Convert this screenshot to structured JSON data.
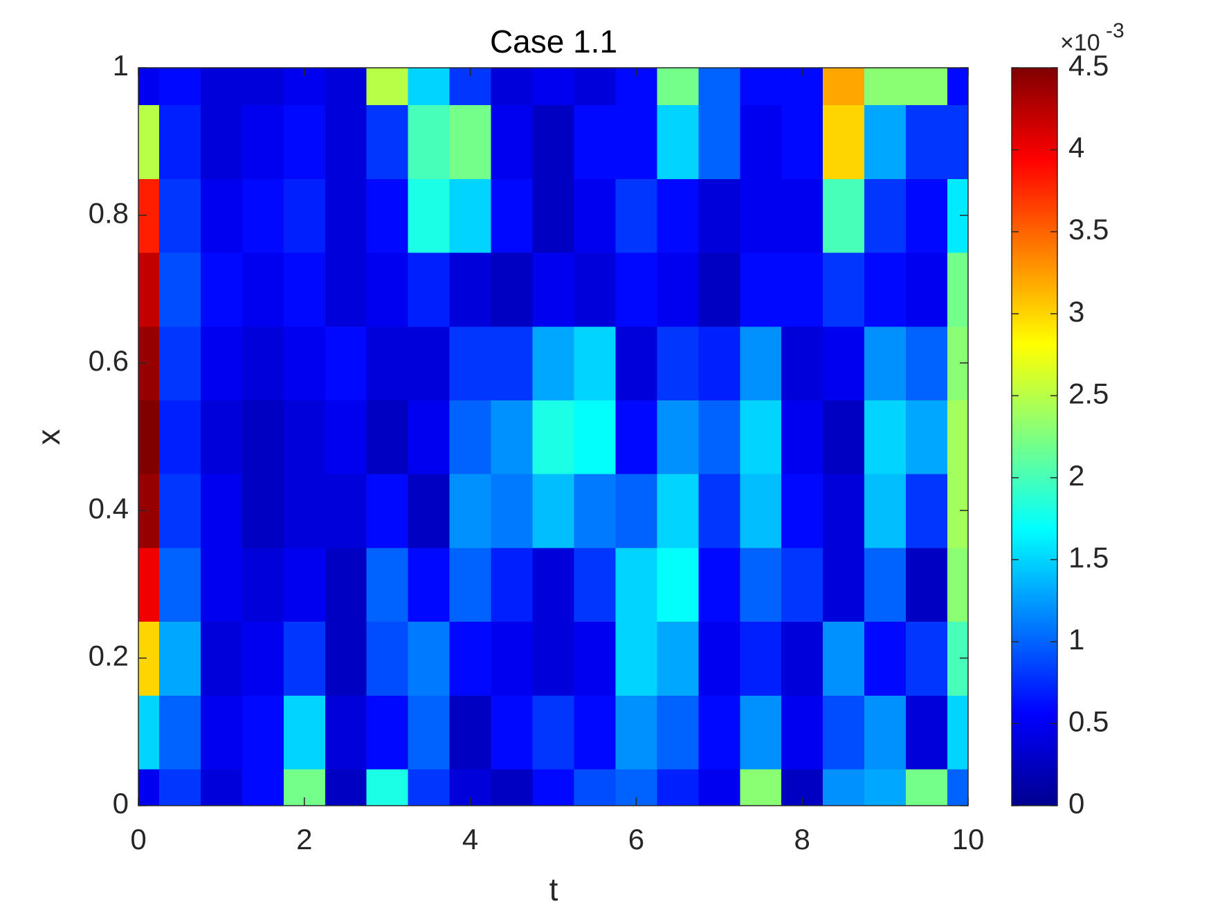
{
  "chart_data": {
    "type": "heatmap",
    "title": "Case 1.1",
    "x_label": "t",
    "y_label": "x",
    "colormap": "jet",
    "x": [
      0,
      0.5,
      1,
      1.5,
      2,
      2.5,
      3,
      3.5,
      4,
      4.5,
      5,
      5.5,
      6,
      6.5,
      7,
      7.5,
      8,
      8.5,
      9,
      9.5,
      10
    ],
    "y": [
      0,
      0.1,
      0.2,
      0.3,
      0.4,
      0.5,
      0.6,
      0.7,
      0.8,
      0.9,
      1
    ],
    "z": [
      [
        0.5,
        0.8,
        0.4,
        0.6,
        2.2,
        0.3,
        1.8,
        0.8,
        0.4,
        0.3,
        0.6,
        0.9,
        1.0,
        0.7,
        0.5,
        2.3,
        0.3,
        1.2,
        1.3,
        2.2,
        1.0
      ],
      [
        1.5,
        1.0,
        0.5,
        0.6,
        1.5,
        0.4,
        0.6,
        1.0,
        0.3,
        0.6,
        0.8,
        0.6,
        1.2,
        1.0,
        0.6,
        1.2,
        0.5,
        0.9,
        1.2,
        0.4,
        1.5
      ],
      [
        3.0,
        1.3,
        0.4,
        0.5,
        0.8,
        0.3,
        0.9,
        1.1,
        0.6,
        0.5,
        0.4,
        0.5,
        1.5,
        1.3,
        0.5,
        0.7,
        0.4,
        1.2,
        0.6,
        0.8,
        2.0
      ],
      [
        4.0,
        1.0,
        0.5,
        0.4,
        0.5,
        0.3,
        1.0,
        0.6,
        1.0,
        0.7,
        0.4,
        0.8,
        1.5,
        1.7,
        0.6,
        1.0,
        0.8,
        0.4,
        1.0,
        0.3,
        2.3
      ],
      [
        4.4,
        0.8,
        0.5,
        0.3,
        0.4,
        0.4,
        0.6,
        0.3,
        1.2,
        1.1,
        1.4,
        1.1,
        1.0,
        1.5,
        0.8,
        1.4,
        0.6,
        0.4,
        1.4,
        0.8,
        2.4
      ],
      [
        4.5,
        0.7,
        0.4,
        0.3,
        0.4,
        0.5,
        0.3,
        0.5,
        1.0,
        1.2,
        1.8,
        1.7,
        0.6,
        1.2,
        1.0,
        1.5,
        0.5,
        0.3,
        1.5,
        1.3,
        2.4
      ],
      [
        4.4,
        0.8,
        0.5,
        0.4,
        0.5,
        0.6,
        0.4,
        0.4,
        0.8,
        0.8,
        1.3,
        1.5,
        0.4,
        0.8,
        0.7,
        1.2,
        0.4,
        0.5,
        1.2,
        1.0,
        2.3
      ],
      [
        4.2,
        0.9,
        0.6,
        0.5,
        0.6,
        0.4,
        0.5,
        0.7,
        0.4,
        0.3,
        0.5,
        0.4,
        0.6,
        0.5,
        0.3,
        0.6,
        0.6,
        0.8,
        0.6,
        0.5,
        2.2
      ],
      [
        3.8,
        0.8,
        0.5,
        0.6,
        0.7,
        0.4,
        0.6,
        1.8,
        1.5,
        0.6,
        0.3,
        0.5,
        0.8,
        0.6,
        0.4,
        0.5,
        0.5,
        2.0,
        0.8,
        0.6,
        1.6
      ],
      [
        2.5,
        0.7,
        0.4,
        0.5,
        0.6,
        0.4,
        0.8,
        2.0,
        2.2,
        0.5,
        0.3,
        0.6,
        0.6,
        1.5,
        1.0,
        0.5,
        0.6,
        3.0,
        1.3,
        0.8,
        0.8
      ],
      [
        0.5,
        0.6,
        0.4,
        0.4,
        0.5,
        0.4,
        2.5,
        1.5,
        0.8,
        0.4,
        0.5,
        0.4,
        0.6,
        2.2,
        1.0,
        0.6,
        0.6,
        3.2,
        2.3,
        2.3,
        0.6
      ]
    ],
    "xlim": [
      0,
      10
    ],
    "ylim": [
      0,
      1
    ],
    "xticks": [
      0,
      2,
      4,
      6,
      8,
      10
    ],
    "yticks": [
      0,
      0.2,
      0.4,
      0.6,
      0.8,
      1
    ],
    "clim": [
      0,
      4.5
    ],
    "cticks": [
      0,
      0.5,
      1,
      1.5,
      2,
      2.5,
      3,
      3.5,
      4,
      4.5
    ],
    "colorbar_scale": {
      "base": "×10",
      "exponent": "-3"
    }
  }
}
